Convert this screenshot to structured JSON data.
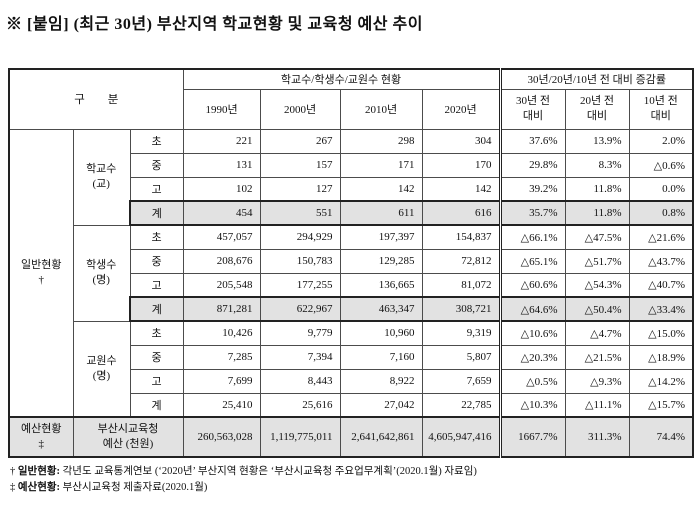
{
  "page": {
    "title": "※ [붙임] (최근 30년) 부산지역 학교현황 및 교육청 예산 추이"
  },
  "table": {
    "header": {
      "col_group_label": "구 분",
      "group1_label": "학교수/학생수/교원수 현황",
      "group2_label": "30년/20년/10년 전 대비 증감률",
      "year_columns": [
        "1990년",
        "2000년",
        "2010년",
        "2020년"
      ],
      "pct_columns": [
        "30년 전\n대비",
        "20년 전\n대비",
        "10년 전\n대비"
      ]
    },
    "sections": [
      {
        "label": "일반현황\n†",
        "groups": [
          {
            "label": "학교수\n(교)",
            "rows": [
              {
                "level": "초",
                "total": false,
                "values": [
                  "221",
                  "267",
                  "298",
                  "304",
                  "37.6%",
                  "13.9%",
                  "2.0%"
                ]
              },
              {
                "level": "중",
                "total": false,
                "values": [
                  "131",
                  "157",
                  "171",
                  "170",
                  "29.8%",
                  "8.3%",
                  "△0.6%"
                ]
              },
              {
                "level": "고",
                "total": false,
                "values": [
                  "102",
                  "127",
                  "142",
                  "142",
                  "39.2%",
                  "11.8%",
                  "0.0%"
                ]
              },
              {
                "level": "계",
                "total": true,
                "values": [
                  "454",
                  "551",
                  "611",
                  "616",
                  "35.7%",
                  "11.8%",
                  "0.8%"
                ]
              }
            ]
          },
          {
            "label": "학생수\n(명)",
            "rows": [
              {
                "level": "초",
                "total": false,
                "values": [
                  "457,057",
                  "294,929",
                  "197,397",
                  "154,837",
                  "△66.1%",
                  "△47.5%",
                  "△21.6%"
                ]
              },
              {
                "level": "중",
                "total": false,
                "values": [
                  "208,676",
                  "150,783",
                  "129,285",
                  "72,812",
                  "△65.1%",
                  "△51.7%",
                  "△43.7%"
                ]
              },
              {
                "level": "고",
                "total": false,
                "values": [
                  "205,548",
                  "177,255",
                  "136,665",
                  "81,072",
                  "△60.6%",
                  "△54.3%",
                  "△40.7%"
                ]
              },
              {
                "level": "계",
                "total": true,
                "values": [
                  "871,281",
                  "622,967",
                  "463,347",
                  "308,721",
                  "△64.6%",
                  "△50.4%",
                  "△33.4%"
                ]
              }
            ]
          },
          {
            "label": "교원수\n(명)",
            "rows": [
              {
                "level": "초",
                "total": false,
                "values": [
                  "10,426",
                  "9,779",
                  "10,960",
                  "9,319",
                  "△10.6%",
                  "△4.7%",
                  "△15.0%"
                ]
              },
              {
                "level": "중",
                "total": false,
                "values": [
                  "7,285",
                  "7,394",
                  "7,160",
                  "5,807",
                  "△20.3%",
                  "△21.5%",
                  "△18.9%"
                ]
              },
              {
                "level": "고",
                "total": false,
                "values": [
                  "7,699",
                  "8,443",
                  "8,922",
                  "7,659",
                  "△0.5%",
                  "△9.3%",
                  "△14.2%"
                ]
              },
              {
                "level": "계",
                "total": false,
                "values": [
                  "25,410",
                  "25,616",
                  "27,042",
                  "22,785",
                  "△10.3%",
                  "△11.1%",
                  "△15.7%"
                ]
              }
            ]
          }
        ]
      }
    ],
    "budget_row": {
      "section_label": "예산현황\n‡",
      "label": "부산시교육청\n예산 (천원)",
      "values": [
        "260,563,028",
        "1,119,775,011",
        "2,641,642,861",
        "4,605,947,416",
        "1667.7%",
        "311.3%",
        "74.4%"
      ]
    }
  },
  "footnotes": [
    {
      "symbol": "†",
      "label": "일반현황:",
      "text": "각년도 교육통계연보 (‘2020년’ 부산지역 현황은 ‘부산시교육청 주요업무계획’(2020.1월) 자료임)"
    },
    {
      "symbol": "‡",
      "label": "예산현황:",
      "text": "부산시교육청 제출자료(2020.1월)"
    }
  ],
  "colors": {
    "shaded_cell": "#e2e2e2",
    "border": "#222222"
  }
}
